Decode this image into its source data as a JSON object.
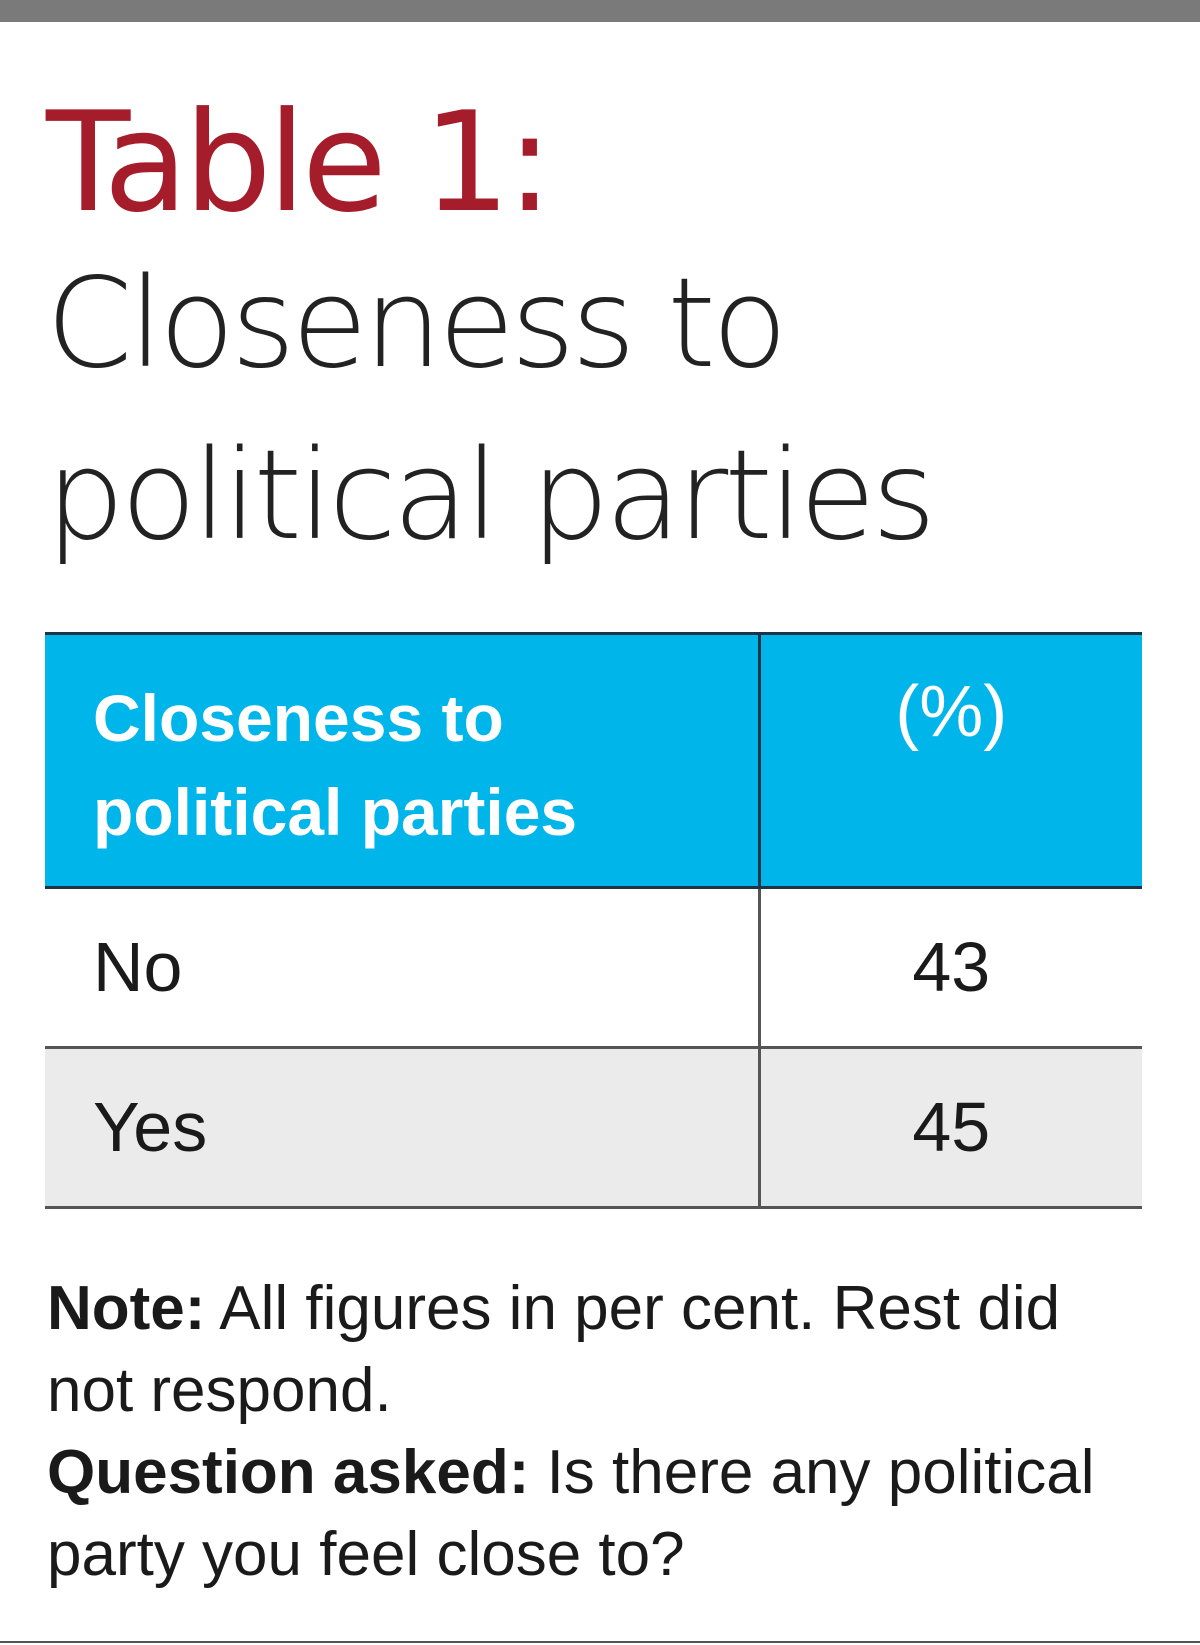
{
  "colors": {
    "title_accent": "#a51c2a",
    "header_fill": "#00b5ea",
    "striped_row_fill": "#ebebeb",
    "top_bar": "#7a7a7a"
  },
  "heading": {
    "table_number": "Table 1:",
    "title_line1": "Closeness to",
    "title_line2": "political parties"
  },
  "table": {
    "headers": {
      "label_line1": "Closeness to",
      "label_line2": "political parties",
      "value": "(%)"
    },
    "rows": [
      {
        "label": "No",
        "value": "43"
      },
      {
        "label": "Yes",
        "value": "45"
      }
    ]
  },
  "notes": {
    "note_label": "Note:",
    "note_text": " All figures in per cent. Rest did not respond.",
    "question_label": "Question asked:",
    "question_text": " Is there any political party you feel close to?"
  }
}
